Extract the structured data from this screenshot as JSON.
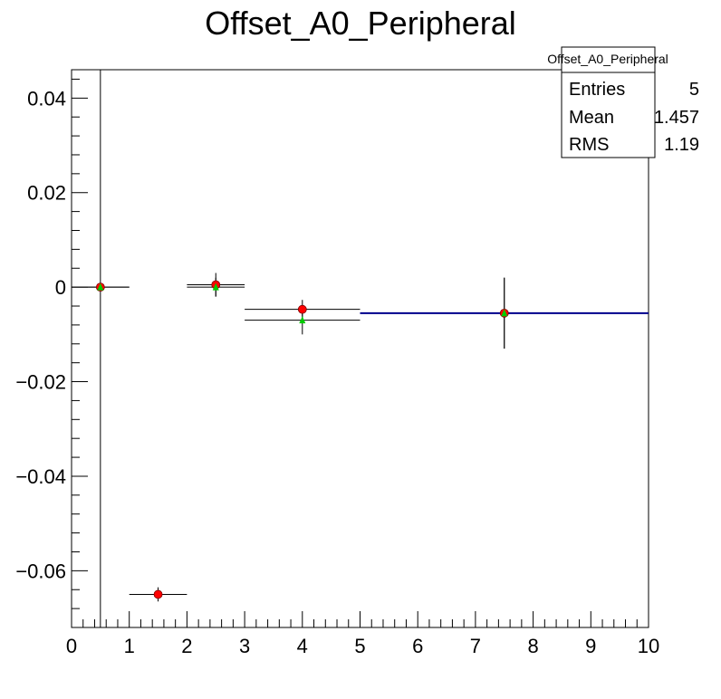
{
  "chart_data": {
    "type": "scatter",
    "title": "Offset_A0_Peripheral",
    "xlabel": "",
    "ylabel": "",
    "xlim": [
      0,
      10
    ],
    "ylim": [
      -0.072,
      0.046
    ],
    "grid": false,
    "x_ticks": [
      "0",
      "1",
      "2",
      "3",
      "4",
      "5",
      "6",
      "7",
      "8",
      "9",
      "10"
    ],
    "y_ticks": [
      {
        "value": 0.04,
        "label": "0.04"
      },
      {
        "value": 0.02,
        "label": "0.02"
      },
      {
        "value": 0,
        "label": "0"
      },
      {
        "value": -0.02,
        "label": "−0.02"
      },
      {
        "value": -0.04,
        "label": "−0.04"
      },
      {
        "value": -0.06,
        "label": "−0.06"
      }
    ],
    "series": [
      {
        "color": "#ff0000",
        "marker": "circle",
        "points": [
          {
            "x": 0.5,
            "xlo": 0,
            "xhi": 1,
            "y": 0.0,
            "yerr": 0
          },
          {
            "x": 1.5,
            "xlo": 1,
            "xhi": 2,
            "y": -0.065,
            "yerr": 0.0015
          },
          {
            "x": 2.5,
            "xlo": 2,
            "xhi": 3,
            "y": 0.0005,
            "yerr": 0.0025
          },
          {
            "x": 4.0,
            "xlo": 3,
            "xhi": 5,
            "y": -0.0047,
            "yerr": 0.002
          },
          {
            "x": 7.5,
            "xlo": 5,
            "xhi": 10,
            "y": -0.0055,
            "yerr": 0.0075
          }
        ]
      },
      {
        "color": "#00cc00",
        "marker": "triangle",
        "points": [
          {
            "x": 0.5,
            "xlo": 0,
            "xhi": 1,
            "y": 0.0,
            "yerr": 0
          },
          {
            "x": 2.5,
            "xlo": 2,
            "xhi": 3,
            "y": 0.0,
            "yerr": 0.002
          },
          {
            "x": 4.0,
            "xlo": 3,
            "xhi": 5,
            "y": -0.007,
            "yerr": 0.003
          },
          {
            "x": 7.5,
            "xlo": 5,
            "xhi": 10,
            "y": -0.0055,
            "yerr": 0.0075
          }
        ]
      },
      {
        "color": "#00008b",
        "marker": "line",
        "points": [
          {
            "x": 7.5,
            "xlo": 5,
            "xhi": 10,
            "y": -0.0055
          }
        ]
      }
    ],
    "vertical_line": {
      "x": 0.5
    },
    "stats_box": {
      "title": "Offset_A0_Peripheral",
      "rows": [
        {
          "label": "Entries",
          "value": "5"
        },
        {
          "label": "Mean",
          "value": "1.457"
        },
        {
          "label": "RMS",
          "value": "1.19"
        }
      ]
    }
  }
}
